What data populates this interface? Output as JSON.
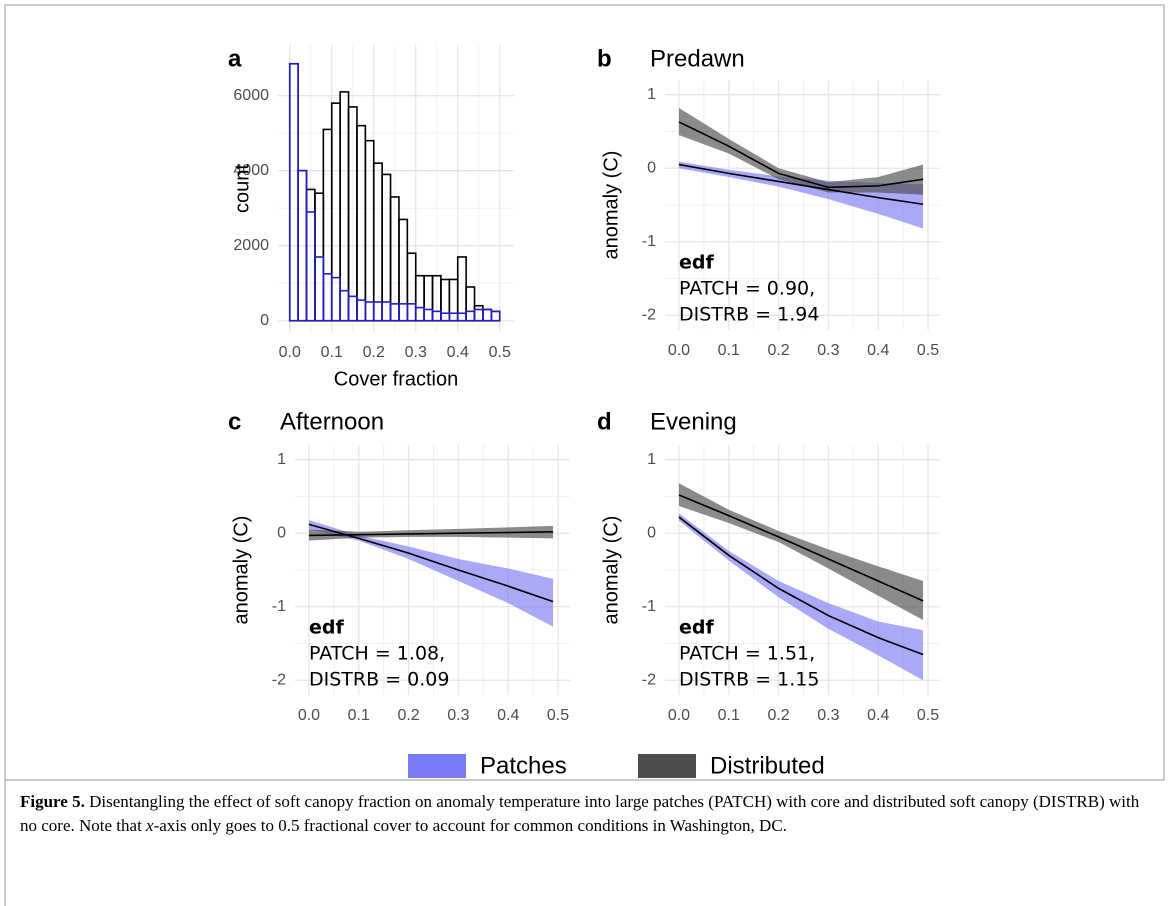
{
  "chart_data": [
    {
      "type": "histogram",
      "panel": "a",
      "xlabel": "Cover fraction",
      "ylabel": "count",
      "bins": [
        0,
        0.02,
        0.04,
        0.06,
        0.08,
        0.1,
        0.12,
        0.14,
        0.16,
        0.18,
        0.2,
        0.22,
        0.24,
        0.26,
        0.28,
        0.3,
        0.32,
        0.34,
        0.36,
        0.38,
        0.4,
        0.42,
        0.44,
        0.46,
        0.48,
        0.5
      ],
      "series": [
        {
          "color": "#000000",
          "values": [
            6850,
            4000,
            3500,
            3400,
            5100,
            5800,
            6100,
            5700,
            5200,
            4800,
            4200,
            3900,
            3300,
            2700,
            1800,
            1200,
            1200,
            1200,
            1100,
            1100,
            1700,
            900,
            400,
            300,
            250
          ]
        },
        {
          "color": "#1f1fbf",
          "values": [
            6850,
            4000,
            2900,
            1700,
            1250,
            1150,
            800,
            650,
            550,
            500,
            500,
            500,
            450,
            450,
            450,
            350,
            300,
            250,
            200,
            200,
            200,
            250,
            300,
            300,
            250
          ]
        }
      ],
      "xlim": [
        -0.028,
        0.534
      ],
      "ylim": [
        -300,
        7350
      ],
      "xticks": [
        {
          "value": 0,
          "label": "0.0"
        },
        0.1,
        0.2,
        0.3,
        0.4,
        0.5
      ],
      "yticks": [
        0,
        2000,
        4000,
        6000
      ],
      "grid": true
    },
    {
      "type": "line",
      "panel": "b",
      "title": "Predawn",
      "ylabel": "anomaly (C)",
      "x": [
        0,
        0.1,
        0.2,
        0.3,
        0.4,
        0.49
      ],
      "series": [
        {
          "color": "#7b7bf5",
          "line_color": "#000000",
          "values": [
            0.05,
            -0.07,
            -0.18,
            -0.29,
            -0.4,
            -0.49
          ],
          "lower": [
            0.0,
            -0.12,
            -0.25,
            -0.42,
            -0.62,
            -0.82
          ],
          "upper": [
            0.09,
            -0.02,
            -0.11,
            -0.17,
            -0.2,
            -0.22
          ]
        },
        {
          "color": "#4d4d4d",
          "line_color": "#000000",
          "values": [
            0.63,
            0.3,
            -0.07,
            -0.26,
            -0.24,
            -0.15
          ],
          "lower": [
            0.45,
            0.2,
            -0.15,
            -0.33,
            -0.33,
            -0.36
          ],
          "upper": [
            0.82,
            0.4,
            0.0,
            -0.19,
            -0.12,
            0.05
          ]
        }
      ],
      "annotation": {
        "heading": "edf",
        "lines": [
          "PATCH = 0.90,",
          "DISTRB = 1.94"
        ]
      },
      "xlim": [
        -0.028,
        0.524
      ],
      "ylim": [
        -2.2,
        1.2
      ],
      "xticks": [
        {
          "value": 0,
          "label": "0.0"
        },
        0.1,
        0.2,
        0.3,
        0.4,
        0.5
      ],
      "yticks": [
        -2,
        -1,
        0,
        1
      ],
      "grid": true
    },
    {
      "type": "line",
      "panel": "c",
      "title": "Afternoon",
      "ylabel": "anomaly (C)",
      "x": [
        0,
        0.1,
        0.2,
        0.3,
        0.4,
        0.49
      ],
      "series": [
        {
          "color": "#7b7bf5",
          "line_color": "#000000",
          "values": [
            0.12,
            -0.07,
            -0.27,
            -0.5,
            -0.72,
            -0.93
          ],
          "lower": [
            0.05,
            -0.1,
            -0.35,
            -0.65,
            -0.95,
            -1.27
          ],
          "upper": [
            0.18,
            -0.03,
            -0.18,
            -0.35,
            -0.48,
            -0.62
          ]
        },
        {
          "color": "#4d4d4d",
          "line_color": "#000000",
          "values": [
            -0.03,
            -0.02,
            -0.01,
            0.0,
            0.01,
            0.02
          ],
          "lower": [
            -0.1,
            -0.06,
            -0.05,
            -0.05,
            -0.06,
            -0.07
          ],
          "upper": [
            0.05,
            0.02,
            0.04,
            0.06,
            0.08,
            0.1
          ]
        }
      ],
      "annotation": {
        "heading": "edf",
        "lines": [
          "PATCH = 1.08,",
          "DISTRB = 0.09"
        ]
      },
      "xlim": [
        -0.028,
        0.524
      ],
      "ylim": [
        -2.2,
        1.2
      ],
      "xticks": [
        {
          "value": 0,
          "label": "0.0"
        },
        0.1,
        0.2,
        0.3,
        0.4,
        0.5
      ],
      "yticks": [
        -2,
        -1,
        0,
        1
      ],
      "grid": true
    },
    {
      "type": "line",
      "panel": "d",
      "title": "Evening",
      "ylabel": "anomaly (C)",
      "x": [
        0,
        0.1,
        0.2,
        0.3,
        0.4,
        0.49
      ],
      "series": [
        {
          "color": "#7b7bf5",
          "line_color": "#000000",
          "values": [
            0.22,
            -0.3,
            -0.75,
            -1.12,
            -1.42,
            -1.65
          ],
          "lower": [
            0.17,
            -0.37,
            -0.87,
            -1.3,
            -1.66,
            -2.0
          ],
          "upper": [
            0.27,
            -0.24,
            -0.65,
            -0.95,
            -1.2,
            -1.32
          ]
        },
        {
          "color": "#4d4d4d",
          "line_color": "#000000",
          "values": [
            0.52,
            0.24,
            -0.05,
            -0.35,
            -0.65,
            -0.92
          ],
          "lower": [
            0.37,
            0.14,
            -0.12,
            -0.48,
            -0.85,
            -1.18
          ],
          "upper": [
            0.68,
            0.32,
            0.03,
            -0.22,
            -0.45,
            -0.65
          ]
        }
      ],
      "annotation": {
        "heading": "edf",
        "lines": [
          "PATCH = 1.51,",
          "DISTRB = 1.15"
        ]
      },
      "xlim": [
        -0.028,
        0.524
      ],
      "ylim": [
        -2.2,
        1.2
      ],
      "xticks": [
        {
          "value": 0,
          "label": "0.0"
        },
        0.1,
        0.2,
        0.3,
        0.4,
        0.5
      ],
      "yticks": [
        -2,
        -1,
        0,
        1
      ],
      "grid": true
    }
  ],
  "legend": [
    {
      "label": "Patches",
      "color": "#7b7bf5"
    },
    {
      "label": "Distributed",
      "color": "#4d4d4d"
    }
  ],
  "caption": {
    "label": "Figure 5.",
    "text_before": " Disentangling the effect of soft canopy fraction on anomaly temperature into large patches (PATCH) with core and distributed soft canopy (DISTRB) with no core. Note that ",
    "italic": "x",
    "text_after": "-axis only goes to 0.5 fractional cover to account for common conditions in Washington, DC."
  }
}
